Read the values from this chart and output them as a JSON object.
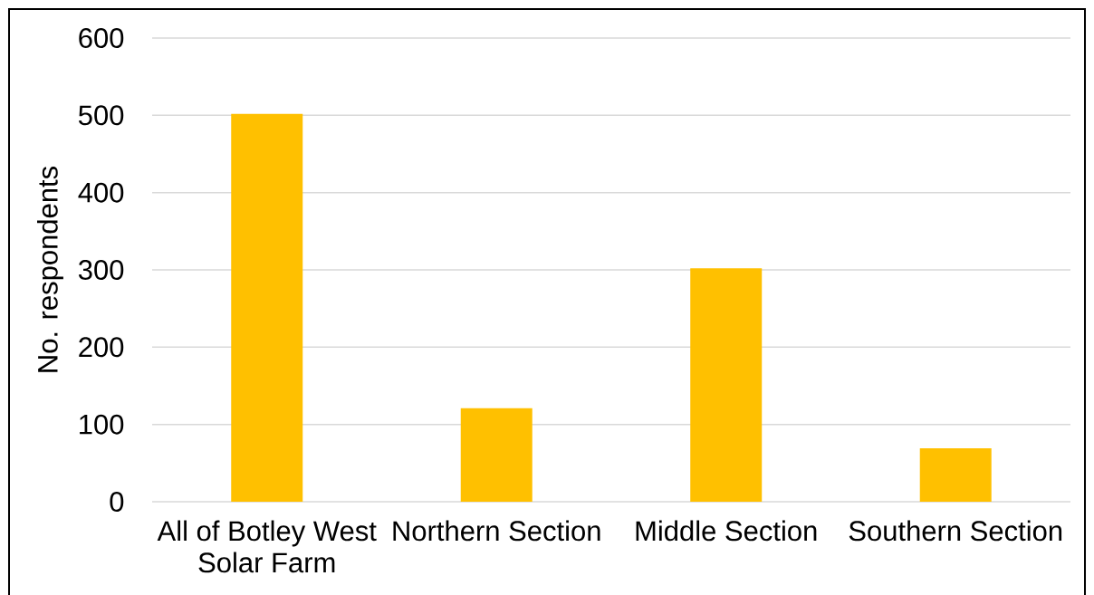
{
  "chart_data": {
    "type": "bar",
    "ylabel": "No. respondents",
    "categories": [
      "All of Botley West Solar Farm",
      "Northern Section",
      "Middle Section",
      "Southern Section"
    ],
    "values": [
      502,
      121,
      302,
      69
    ],
    "color": "#ffc000",
    "ylim": [
      0,
      600
    ],
    "yticks": [
      0,
      100,
      200,
      300,
      400,
      500,
      600
    ],
    "grid": "y"
  }
}
